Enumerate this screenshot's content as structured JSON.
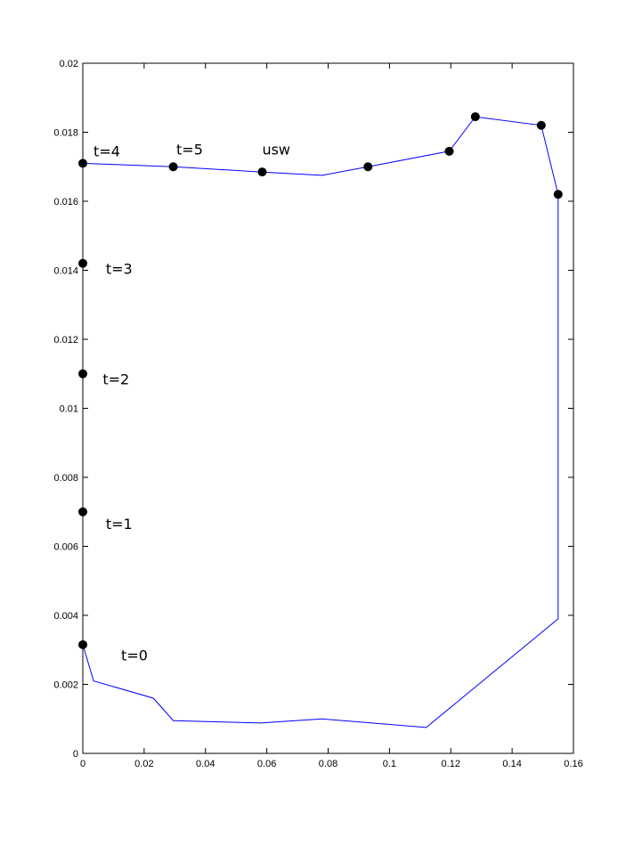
{
  "chart_data": {
    "type": "line",
    "title": "",
    "xlabel": "",
    "ylabel": "",
    "xlim": [
      0,
      0.16
    ],
    "ylim": [
      0,
      0.02
    ],
    "xticks": [
      0,
      0.02,
      0.04,
      0.06,
      0.08,
      0.1,
      0.12,
      0.14,
      0.16
    ],
    "xtick_labels": [
      "0",
      "0.02",
      "0.04",
      "0.06",
      "0.08",
      "0.1",
      "0.12",
      "0.14",
      "0.16"
    ],
    "yticks": [
      0,
      0.002,
      0.004,
      0.006,
      0.008,
      0.01,
      0.012,
      0.014,
      0.016,
      0.018,
      0.02
    ],
    "ytick_labels": [
      "0",
      "0.002",
      "0.004",
      "0.006",
      "0.008",
      "0.01",
      "0.012",
      "0.014",
      "0.016",
      "0.018",
      "0.02"
    ],
    "grid": false,
    "line_color": "#0000ff",
    "marker_color": "#000000",
    "series": [
      {
        "x": [
          0.0,
          0.0035,
          0.023,
          0.0295,
          0.058,
          0.078,
          0.112,
          0.155,
          0.155,
          0.1495,
          0.128,
          0.1195,
          0.093,
          0.078,
          0.058,
          0.0295,
          0.0
        ],
        "y": [
          0.00315,
          0.0021,
          0.0016,
          0.00095,
          0.00088,
          0.001,
          0.00075,
          0.0039,
          0.0162,
          0.0182,
          0.01845,
          0.01745,
          0.017,
          0.01675,
          0.01685,
          0.017,
          0.0171
        ]
      }
    ],
    "markers": [
      {
        "x": 0.0,
        "y": 0.00315
      },
      {
        "x": 0.0,
        "y": 0.007
      },
      {
        "x": 0.0,
        "y": 0.011
      },
      {
        "x": 0.0,
        "y": 0.0142
      },
      {
        "x": 0.0,
        "y": 0.0171
      },
      {
        "x": 0.0295,
        "y": 0.017
      },
      {
        "x": 0.0585,
        "y": 0.01685
      },
      {
        "x": 0.093,
        "y": 0.017
      },
      {
        "x": 0.1195,
        "y": 0.01745
      },
      {
        "x": 0.128,
        "y": 0.01845
      },
      {
        "x": 0.1495,
        "y": 0.0182
      },
      {
        "x": 0.155,
        "y": 0.0162
      }
    ],
    "annotations": [
      {
        "text": "t=0",
        "x": 0.0125,
        "y": 0.0027
      },
      {
        "text": "t=1",
        "x": 0.0075,
        "y": 0.0065
      },
      {
        "text": "t=2",
        "x": 0.0065,
        "y": 0.0107
      },
      {
        "text": "t=3",
        "x": 0.0075,
        "y": 0.0139
      },
      {
        "text": "t=4",
        "x": 0.0035,
        "y": 0.0173
      },
      {
        "text": "t=5",
        "x": 0.0305,
        "y": 0.01735
      },
      {
        "text": "usw",
        "x": 0.0585,
        "y": 0.01735
      }
    ]
  }
}
